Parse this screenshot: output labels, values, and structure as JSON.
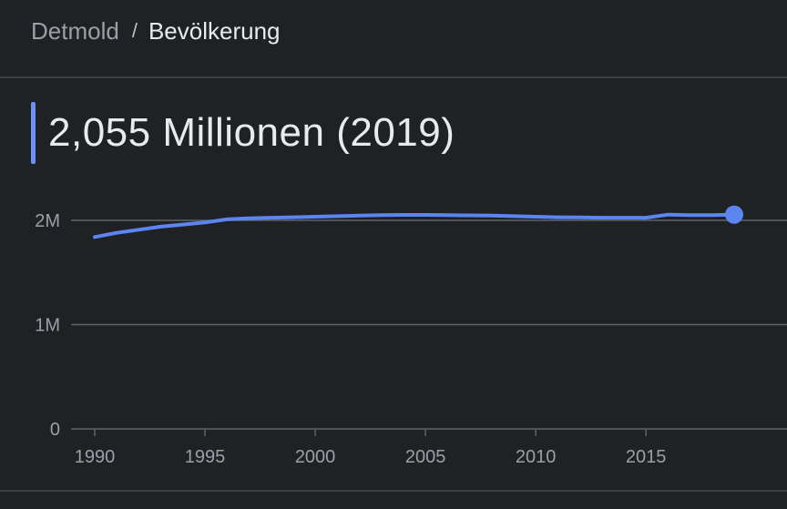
{
  "breadcrumb": {
    "parent": "Detmold",
    "separator": "/",
    "current": "Bevölkerung"
  },
  "headline": {
    "value": "2,055 Millionen (2019)"
  },
  "colors": {
    "background": "#202124",
    "series": "#5b85f0",
    "accent": "#6b93f5",
    "grid": "#5f6368"
  },
  "chart_data": {
    "type": "line",
    "title": "",
    "xlabel": "",
    "ylabel": "",
    "xlim": [
      1990,
      2019
    ],
    "ylim": [
      0,
      2000000
    ],
    "grid": true,
    "y_ticks": [
      {
        "value": 0,
        "label": "0"
      },
      {
        "value": 1000000,
        "label": "1M"
      },
      {
        "value": 2000000,
        "label": "2M"
      }
    ],
    "x_ticks": [
      {
        "value": 1990,
        "label": "1990"
      },
      {
        "value": 1995,
        "label": "1995"
      },
      {
        "value": 2000,
        "label": "2000"
      },
      {
        "value": 2005,
        "label": "2005"
      },
      {
        "value": 2010,
        "label": "2010"
      },
      {
        "value": 2015,
        "label": "2015"
      }
    ],
    "series": [
      {
        "x": [
          1990,
          1991,
          1992,
          1993,
          1994,
          1995,
          1996,
          1997,
          1998,
          1999,
          2000,
          2001,
          2002,
          2003,
          2004,
          2005,
          2006,
          2007,
          2008,
          2009,
          2010,
          2011,
          2012,
          2013,
          2014,
          2015,
          2016,
          2017,
          2018,
          2019
        ],
        "y": [
          1840000,
          1880000,
          1910000,
          1940000,
          1960000,
          1980000,
          2010000,
          2020000,
          2025000,
          2030000,
          2035000,
          2040000,
          2045000,
          2050000,
          2052000,
          2052000,
          2050000,
          2048000,
          2045000,
          2040000,
          2035000,
          2030000,
          2028000,
          2025000,
          2025000,
          2025000,
          2055000,
          2050000,
          2050000,
          2055000
        ]
      }
    ]
  }
}
